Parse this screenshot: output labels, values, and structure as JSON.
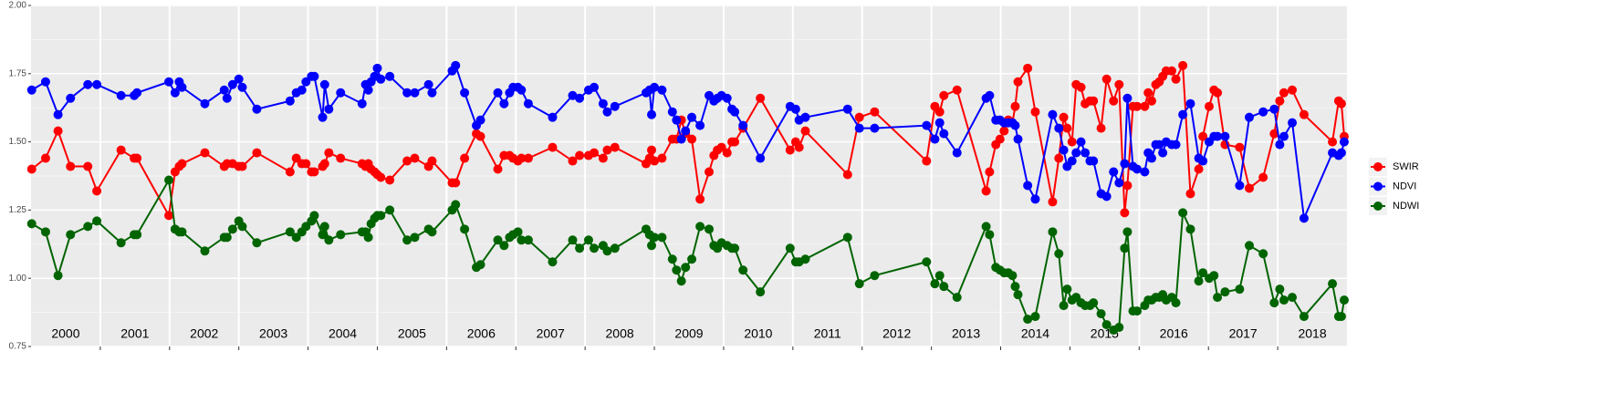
{
  "chart_data": {
    "type": "line",
    "x": [
      2000.01,
      2000.21,
      2000.39,
      2000.57,
      2000.82,
      2000.95,
      2001.3,
      2001.49,
      2001.53,
      2001.99,
      2002.08,
      2002.14,
      2002.18,
      2002.51,
      2002.79,
      2002.83,
      2002.91,
      2003.0,
      2003.05,
      2003.26,
      2003.74,
      2003.83,
      2003.91,
      2003.97,
      2004.05,
      2004.09,
      2004.21,
      2004.24,
      2004.3,
      2004.47,
      2004.78,
      2004.83,
      2004.87,
      2004.91,
      2004.96,
      2005.0,
      2005.05,
      2005.18,
      2005.43,
      2005.54,
      2005.74,
      2005.79,
      2006.08,
      2006.13,
      2006.26,
      2006.43,
      2006.49,
      2006.74,
      2006.83,
      2006.91,
      2006.96,
      2007.03,
      2007.08,
      2007.18,
      2007.53,
      2007.82,
      2007.92,
      2008.05,
      2008.13,
      2008.26,
      2008.32,
      2008.43,
      2008.88,
      2008.93,
      2008.96,
      2009.0,
      2009.11,
      2009.26,
      2009.32,
      2009.39,
      2009.45,
      2009.54,
      2009.66,
      2009.79,
      2009.86,
      2009.91,
      2009.97,
      2010.05,
      2010.12,
      2010.16,
      2010.28,
      2010.53,
      2010.96,
      2011.04,
      2011.09,
      2011.18,
      2011.79,
      2011.96,
      2012.18,
      2012.93,
      2013.05,
      2013.12,
      2013.18,
      2013.37,
      2013.79,
      2013.84,
      2013.93,
      2013.99,
      2014.05,
      2014.11,
      2014.17,
      2014.21,
      2014.25,
      2014.39,
      2014.5,
      2014.75,
      2014.84,
      2014.91,
      2014.96,
      2015.03,
      2015.09,
      2015.16,
      2015.22,
      2015.29,
      2015.34,
      2015.45,
      2015.53,
      2015.63,
      2015.71,
      2015.79,
      2015.83,
      2015.91,
      2015.97,
      2016.08,
      2016.13,
      2016.18,
      2016.24,
      2016.29,
      2016.34,
      2016.39,
      2016.47,
      2016.53,
      2016.63,
      2016.74,
      2016.86,
      2016.92,
      2017.01,
      2017.08,
      2017.13,
      2017.24,
      2017.45,
      2017.59,
      2017.79,
      2017.95,
      2018.03,
      2018.09,
      2018.21,
      2018.38,
      2018.79,
      2018.88,
      2018.92,
      2018.96
    ],
    "series": [
      {
        "name": "SWIR",
        "color": "#ff0000",
        "values": [
          1.4,
          1.44,
          1.54,
          1.41,
          1.41,
          1.32,
          1.47,
          1.44,
          1.44,
          1.23,
          1.39,
          1.41,
          1.42,
          1.46,
          1.41,
          1.42,
          1.42,
          1.41,
          1.41,
          1.46,
          1.39,
          1.44,
          1.42,
          1.42,
          1.39,
          1.39,
          1.41,
          1.42,
          1.46,
          1.44,
          1.42,
          1.41,
          1.42,
          1.4,
          1.39,
          1.38,
          1.37,
          1.36,
          1.43,
          1.44,
          1.41,
          1.43,
          1.35,
          1.35,
          1.44,
          1.53,
          1.52,
          1.4,
          1.45,
          1.45,
          1.44,
          1.43,
          1.44,
          1.44,
          1.48,
          1.43,
          1.45,
          1.45,
          1.46,
          1.44,
          1.47,
          1.48,
          1.42,
          1.44,
          1.47,
          1.43,
          1.44,
          1.51,
          1.51,
          1.58,
          1.53,
          1.51,
          1.29,
          1.39,
          1.45,
          1.47,
          1.48,
          1.46,
          1.5,
          1.5,
          1.55,
          1.66,
          1.47,
          1.5,
          1.48,
          1.54,
          1.38,
          1.59,
          1.61,
          1.43,
          1.63,
          1.61,
          1.67,
          1.69,
          1.32,
          1.39,
          1.49,
          1.51,
          1.54,
          1.58,
          1.57,
          1.63,
          1.72,
          1.77,
          1.61,
          1.28,
          1.44,
          1.59,
          1.55,
          1.5,
          1.71,
          1.7,
          1.64,
          1.65,
          1.65,
          1.55,
          1.73,
          1.65,
          1.71,
          1.24,
          1.34,
          1.63,
          1.63,
          1.63,
          1.68,
          1.65,
          1.71,
          1.72,
          1.74,
          1.76,
          1.76,
          1.73,
          1.78,
          1.31,
          1.4,
          1.52,
          1.63,
          1.69,
          1.68,
          1.49,
          1.48,
          1.33,
          1.37,
          1.53,
          1.65,
          1.68,
          1.69,
          1.6,
          1.5,
          1.65,
          1.64,
          1.52
        ]
      },
      {
        "name": "NDVI",
        "color": "#0000ff",
        "values": [
          1.69,
          1.72,
          1.6,
          1.66,
          1.71,
          1.71,
          1.67,
          1.67,
          1.68,
          1.72,
          1.68,
          1.72,
          1.7,
          1.64,
          1.69,
          1.66,
          1.71,
          1.73,
          1.7,
          1.62,
          1.65,
          1.68,
          1.69,
          1.72,
          1.74,
          1.74,
          1.59,
          1.71,
          1.62,
          1.68,
          1.64,
          1.71,
          1.69,
          1.72,
          1.74,
          1.77,
          1.73,
          1.74,
          1.68,
          1.68,
          1.71,
          1.68,
          1.76,
          1.78,
          1.68,
          1.56,
          1.58,
          1.68,
          1.64,
          1.68,
          1.7,
          1.7,
          1.69,
          1.64,
          1.59,
          1.67,
          1.66,
          1.69,
          1.7,
          1.64,
          1.61,
          1.63,
          1.68,
          1.69,
          1.6,
          1.7,
          1.69,
          1.61,
          1.58,
          1.51,
          1.54,
          1.59,
          1.56,
          1.67,
          1.65,
          1.66,
          1.67,
          1.66,
          1.62,
          1.61,
          1.56,
          1.44,
          1.63,
          1.62,
          1.58,
          1.59,
          1.62,
          1.55,
          1.55,
          1.56,
          1.51,
          1.57,
          1.53,
          1.46,
          1.66,
          1.67,
          1.58,
          1.58,
          1.57,
          1.57,
          1.57,
          1.56,
          1.51,
          1.34,
          1.29,
          1.6,
          1.55,
          1.47,
          1.41,
          1.43,
          1.46,
          1.5,
          1.46,
          1.43,
          1.43,
          1.31,
          1.3,
          1.39,
          1.35,
          1.42,
          1.66,
          1.41,
          1.4,
          1.39,
          1.46,
          1.44,
          1.49,
          1.49,
          1.46,
          1.5,
          1.49,
          1.49,
          1.6,
          1.64,
          1.44,
          1.43,
          1.5,
          1.52,
          1.52,
          1.52,
          1.34,
          1.59,
          1.61,
          1.62,
          1.49,
          1.52,
          1.57,
          1.22,
          1.46,
          1.45,
          1.46,
          1.5
        ]
      },
      {
        "name": "NDWI",
        "color": "#006400",
        "values": [
          1.2,
          1.17,
          1.01,
          1.16,
          1.19,
          1.21,
          1.13,
          1.16,
          1.16,
          1.36,
          1.18,
          1.17,
          1.17,
          1.1,
          1.15,
          1.15,
          1.18,
          1.21,
          1.19,
          1.13,
          1.17,
          1.15,
          1.17,
          1.19,
          1.21,
          1.23,
          1.16,
          1.19,
          1.14,
          1.16,
          1.17,
          1.17,
          1.15,
          1.2,
          1.22,
          1.23,
          1.23,
          1.25,
          1.14,
          1.15,
          1.18,
          1.17,
          1.25,
          1.27,
          1.18,
          1.04,
          1.05,
          1.14,
          1.12,
          1.15,
          1.16,
          1.17,
          1.14,
          1.14,
          1.06,
          1.14,
          1.11,
          1.14,
          1.11,
          1.12,
          1.1,
          1.11,
          1.18,
          1.16,
          1.12,
          1.15,
          1.15,
          1.07,
          1.03,
          0.99,
          1.04,
          1.07,
          1.19,
          1.18,
          1.12,
          1.11,
          1.13,
          1.12,
          1.11,
          1.11,
          1.03,
          0.95,
          1.11,
          1.06,
          1.06,
          1.07,
          1.15,
          0.98,
          1.01,
          1.06,
          0.98,
          1.01,
          0.97,
          0.93,
          1.19,
          1.16,
          1.04,
          1.03,
          1.02,
          1.02,
          1.01,
          0.97,
          0.94,
          0.85,
          0.86,
          1.17,
          1.09,
          0.9,
          0.96,
          0.92,
          0.93,
          0.91,
          0.9,
          0.9,
          0.91,
          0.87,
          0.83,
          0.81,
          0.82,
          1.11,
          1.17,
          0.88,
          0.88,
          0.9,
          0.92,
          0.92,
          0.93,
          0.93,
          0.94,
          0.92,
          0.93,
          0.91,
          1.24,
          1.18,
          0.99,
          1.02,
          1.0,
          1.01,
          0.93,
          0.95,
          0.96,
          1.12,
          1.09,
          0.91,
          0.96,
          0.92,
          0.93,
          0.86,
          0.98,
          0.86,
          0.86,
          0.92
        ]
      }
    ],
    "xlim": [
      2000,
      2019
    ],
    "xticks": [
      2001,
      2002,
      2003,
      2004,
      2005,
      2006,
      2007,
      2008,
      2009,
      2010,
      2011,
      2012,
      2013,
      2014,
      2015,
      2016,
      2017,
      2018
    ],
    "year_labels": [
      {
        "value": 2000.5,
        "label": "2000"
      },
      {
        "value": 2001.5,
        "label": "2001"
      },
      {
        "value": 2002.5,
        "label": "2002"
      },
      {
        "value": 2003.5,
        "label": "2003"
      },
      {
        "value": 2004.5,
        "label": "2004"
      },
      {
        "value": 2005.5,
        "label": "2005"
      },
      {
        "value": 2006.5,
        "label": "2006"
      },
      {
        "value": 2007.5,
        "label": "2007"
      },
      {
        "value": 2008.5,
        "label": "2008"
      },
      {
        "value": 2009.5,
        "label": "2009"
      },
      {
        "value": 2010.5,
        "label": "2010"
      },
      {
        "value": 2011.5,
        "label": "2011"
      },
      {
        "value": 2012.5,
        "label": "2012"
      },
      {
        "value": 2013.5,
        "label": "2013"
      },
      {
        "value": 2014.5,
        "label": "2014"
      },
      {
        "value": 2015.5,
        "label": "2015"
      },
      {
        "value": 2016.5,
        "label": "2016"
      },
      {
        "value": 2017.5,
        "label": "2017"
      },
      {
        "value": 2018.5,
        "label": "2018"
      }
    ],
    "ylim": [
      0.75,
      2.0
    ],
    "yticks": [
      0.75,
      {
        "value": 1.0,
        "label": "1.00"
      },
      1.25,
      {
        "value": 1.5,
        "label": "1.50"
      },
      1.75,
      {
        "value": 2.0,
        "label": "2.00"
      }
    ],
    "grid": true,
    "legend": "right"
  }
}
